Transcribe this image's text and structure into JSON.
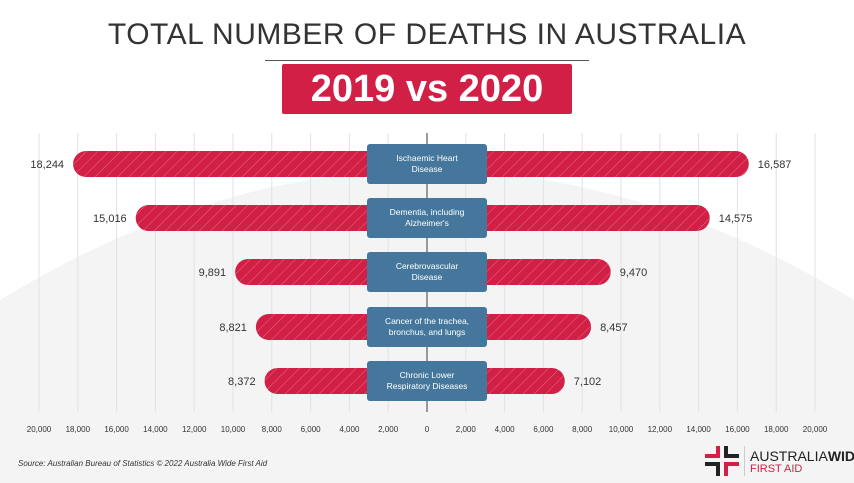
{
  "title": "TOTAL NUMBER OF DEATHS IN AUSTRALIA",
  "subtitle": "2019 vs 2020",
  "source": "Source: Australian Bureau of Statistics © 2022 Australia Wide First Aid",
  "logo": {
    "line1a": "AUSTRALIA",
    "line1b": "WIDE",
    "line2": "FIRST AID"
  },
  "colors": {
    "bar": "#d21f45",
    "label_box": "#44779b",
    "title_band": "#d21f45"
  },
  "chart_data": {
    "type": "bar",
    "orientation": "horizontal-butterfly",
    "categories": [
      "Ischaemic Heart Disease",
      "Dementia, including Alzheimer's",
      "Cerebrovascular Disease",
      "Cancer of the trachea, bronchus, and lungs",
      "Chronic Lower Respiratory Diseases"
    ],
    "series": [
      {
        "side": "left",
        "values": [
          18244,
          15016,
          9891,
          8821,
          8372
        ],
        "labels": [
          "18,244",
          "15,016",
          "9,891",
          "8,821",
          "8,372"
        ]
      },
      {
        "side": "right",
        "values": [
          16587,
          14575,
          9470,
          8457,
          7102
        ],
        "labels": [
          "16,587",
          "14,575",
          "9,470",
          "8,457",
          "7,102"
        ]
      }
    ],
    "xlim": [
      -20000,
      20000
    ],
    "ticks": [
      "20,000",
      "18,000",
      "16,000",
      "14,000",
      "12,000",
      "10,000",
      "8,000",
      "6,000",
      "4,000",
      "2,000",
      "0",
      "2,000",
      "4,000",
      "6,000",
      "8,000",
      "10,000",
      "12,000",
      "14,000",
      "16,000",
      "18,000",
      "20,000"
    ],
    "grid": true
  }
}
